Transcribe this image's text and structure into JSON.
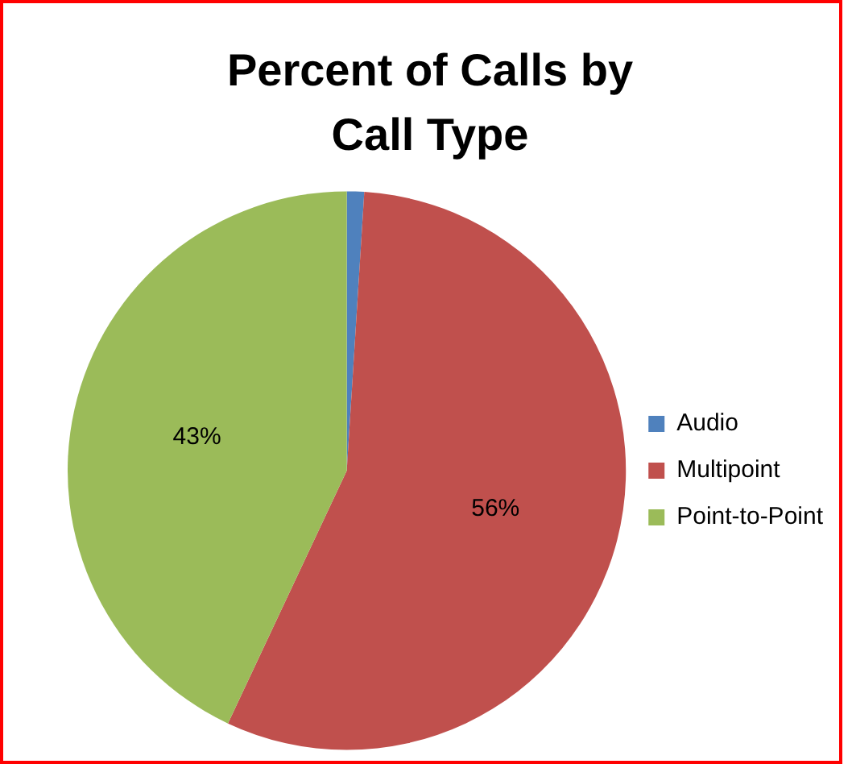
{
  "chart_data": {
    "type": "pie",
    "title": "Percent of Calls by Call Type",
    "categories": [
      "Audio",
      "Multipoint",
      "Point-to-Point"
    ],
    "values": [
      1,
      56,
      43
    ],
    "value_labels": [
      null,
      "56%",
      "43%"
    ],
    "colors": [
      "#4f81bd",
      "#c0504d",
      "#9bbb59"
    ],
    "legend": "right"
  }
}
